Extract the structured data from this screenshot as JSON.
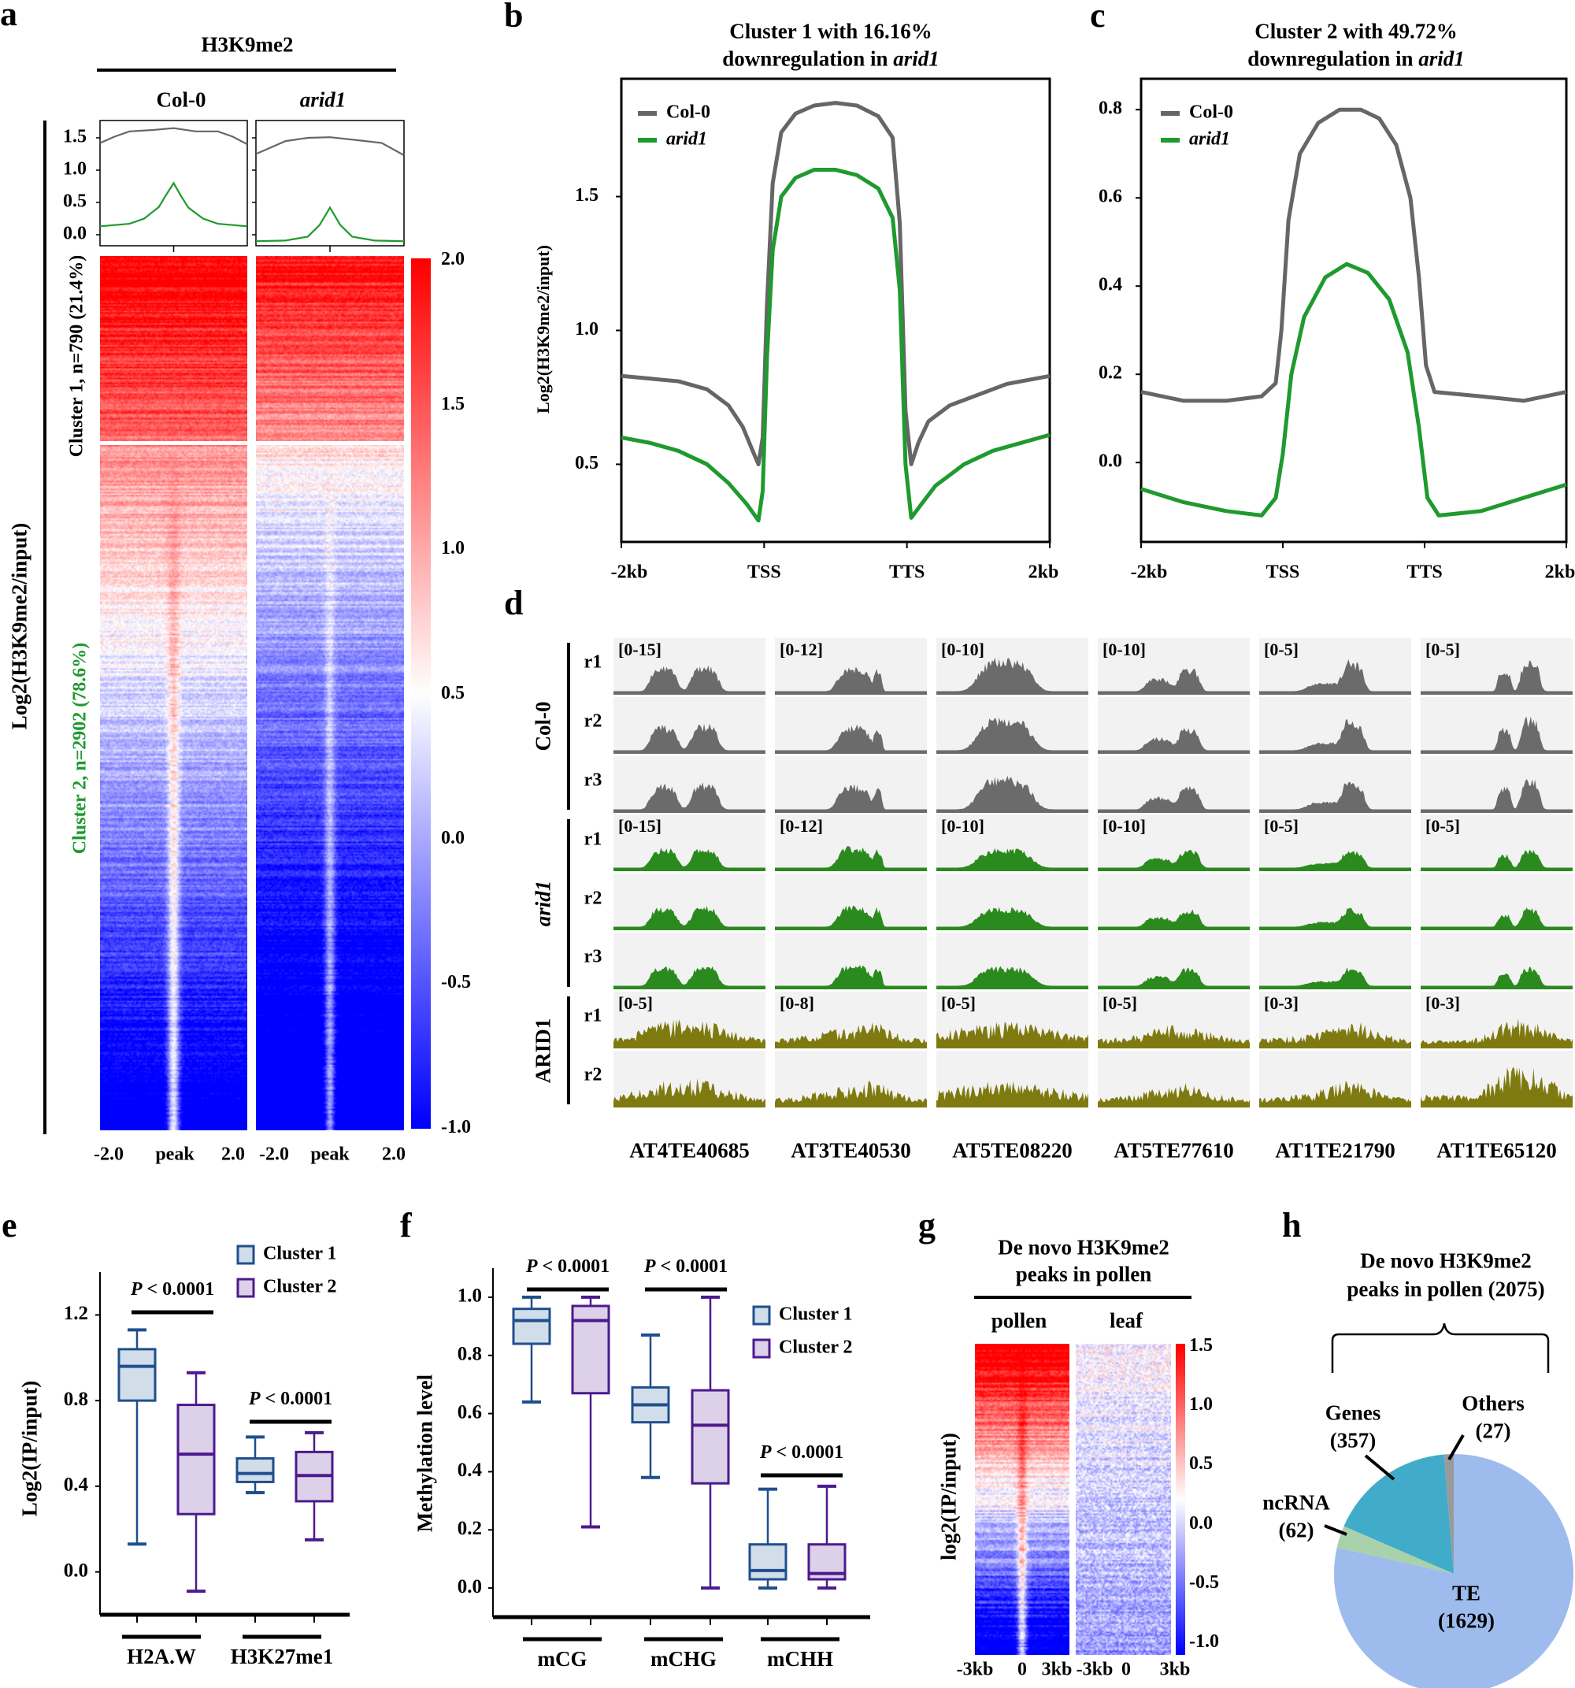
{
  "panel_labels": {
    "a": "a",
    "b": "b",
    "c": "c",
    "d": "d",
    "e": "e",
    "f": "f",
    "g": "g",
    "h": "h"
  },
  "chart_data": [
    {
      "type": "heatmap",
      "title": "H3K9me2",
      "columns": [
        "Col-0",
        "arid1"
      ],
      "ylabel": "Log2(H3K9me2/input)",
      "clusters": [
        {
          "label": "Cluster 1, n=790 (21.4%)",
          "n": 790,
          "percent": 21.4,
          "color": "#000000"
        },
        {
          "label": "Cluster 2, n=2902 (78.6%)",
          "n": 2902,
          "percent": 78.6,
          "color": "#1e9a2e"
        }
      ],
      "xticks": [
        "-2.0",
        "peak",
        "2.0"
      ],
      "colorbar": {
        "range": [
          -1.0,
          2.0
        ],
        "ticks": [
          "2.0",
          "1.5",
          "1.0",
          "0.5",
          "0.0",
          "-0.5",
          "-1.0"
        ],
        "low": "#0000ff",
        "mid": "#ffffff",
        "high": "#ff0000"
      },
      "profile": {
        "yticks": [
          "1.5",
          "1.0",
          "0.5",
          "0.0"
        ],
        "ylim": [
          -0.2,
          1.75
        ],
        "series": [
          {
            "panel": "Col-0",
            "cluster": 1,
            "color": "#666666",
            "points": [
              [
                0,
                1.42
              ],
              [
                0.1,
                1.52
              ],
              [
                0.2,
                1.6
              ],
              [
                0.35,
                1.62
              ],
              [
                0.5,
                1.65
              ],
              [
                0.65,
                1.6
              ],
              [
                0.8,
                1.6
              ],
              [
                0.9,
                1.52
              ],
              [
                1,
                1.4
              ]
            ]
          },
          {
            "panel": "Col-0",
            "cluster": 2,
            "color": "#1e9a2e",
            "points": [
              [
                0,
                0.13
              ],
              [
                0.2,
                0.17
              ],
              [
                0.3,
                0.25
              ],
              [
                0.4,
                0.43
              ],
              [
                0.45,
                0.62
              ],
              [
                0.5,
                0.8
              ],
              [
                0.55,
                0.6
              ],
              [
                0.6,
                0.42
              ],
              [
                0.7,
                0.25
              ],
              [
                0.8,
                0.17
              ],
              [
                1,
                0.13
              ]
            ]
          },
          {
            "panel": "arid1",
            "cluster": 1,
            "color": "#666666",
            "points": [
              [
                0,
                1.25
              ],
              [
                0.2,
                1.45
              ],
              [
                0.35,
                1.5
              ],
              [
                0.5,
                1.51
              ],
              [
                0.7,
                1.46
              ],
              [
                0.85,
                1.42
              ],
              [
                1,
                1.23
              ]
            ]
          },
          {
            "panel": "arid1",
            "cluster": 2,
            "color": "#1e9a2e",
            "points": [
              [
                0,
                -0.1
              ],
              [
                0.2,
                -0.09
              ],
              [
                0.35,
                -0.03
              ],
              [
                0.43,
                0.15
              ],
              [
                0.5,
                0.42
              ],
              [
                0.57,
                0.15
              ],
              [
                0.65,
                -0.03
              ],
              [
                0.8,
                -0.09
              ],
              [
                1,
                -0.1
              ]
            ]
          }
        ]
      }
    },
    {
      "type": "line",
      "title_line1": "Cluster 1 with 16.16%",
      "title_line2_pre": "downregulation in ",
      "title_line2_it": "arid1",
      "ylabel": "Log2(H3K9me2/input)",
      "ylim": [
        0.21,
        1.94
      ],
      "yticks": [
        1.5,
        1.0,
        0.5
      ],
      "ytick_labels": [
        "1.5",
        "1.0",
        "0.5"
      ],
      "xlim": [
        0,
        300
      ],
      "xticks": [
        0,
        100,
        200,
        300
      ],
      "xtick_labels": [
        "-2kb",
        "TSS",
        "TTS",
        "2kb"
      ],
      "series": [
        {
          "name": "Col-0",
          "color": "#666666",
          "points": [
            [
              0,
              0.83
            ],
            [
              20,
              0.82
            ],
            [
              40,
              0.81
            ],
            [
              60,
              0.78
            ],
            [
              75,
              0.72
            ],
            [
              85,
              0.64
            ],
            [
              92,
              0.55
            ],
            [
              96,
              0.5
            ],
            [
              99,
              0.6
            ],
            [
              102,
              1.1
            ],
            [
              106,
              1.55
            ],
            [
              112,
              1.74
            ],
            [
              122,
              1.81
            ],
            [
              135,
              1.84
            ],
            [
              150,
              1.85
            ],
            [
              165,
              1.84
            ],
            [
              180,
              1.8
            ],
            [
              190,
              1.72
            ],
            [
              195,
              1.4
            ],
            [
              199,
              0.7
            ],
            [
              203,
              0.5
            ],
            [
              208,
              0.58
            ],
            [
              215,
              0.66
            ],
            [
              230,
              0.72
            ],
            [
              250,
              0.76
            ],
            [
              270,
              0.8
            ],
            [
              300,
              0.83
            ]
          ]
        },
        {
          "name": "arid1",
          "color": "#1e9a2e",
          "points": [
            [
              0,
              0.6
            ],
            [
              20,
              0.58
            ],
            [
              40,
              0.55
            ],
            [
              60,
              0.5
            ],
            [
              75,
              0.43
            ],
            [
              88,
              0.35
            ],
            [
              96,
              0.29
            ],
            [
              99,
              0.4
            ],
            [
              102,
              0.9
            ],
            [
              106,
              1.3
            ],
            [
              112,
              1.5
            ],
            [
              122,
              1.57
            ],
            [
              135,
              1.6
            ],
            [
              150,
              1.6
            ],
            [
              165,
              1.58
            ],
            [
              180,
              1.53
            ],
            [
              190,
              1.42
            ],
            [
              195,
              1.15
            ],
            [
              199,
              0.5
            ],
            [
              203,
              0.3
            ],
            [
              210,
              0.35
            ],
            [
              220,
              0.42
            ],
            [
              240,
              0.5
            ],
            [
              260,
              0.55
            ],
            [
              300,
              0.61
            ]
          ]
        }
      ],
      "legend": "top-left"
    },
    {
      "type": "line",
      "title_line1": "Cluster 2 with 49.72%",
      "title_line2_pre": "downregulation in ",
      "title_line2_it": "arid1",
      "ylim": [
        -0.18,
        0.87
      ],
      "yticks": [
        0.8,
        0.6,
        0.4,
        0.2,
        0.0
      ],
      "ytick_labels": [
        "0.8",
        "0.6",
        "0.4",
        "0.2",
        "0.0"
      ],
      "xlim": [
        0,
        300
      ],
      "xticks": [
        0,
        100,
        200,
        300
      ],
      "xtick_labels": [
        "-2kb",
        "TSS",
        "TTS",
        "2kb"
      ],
      "series": [
        {
          "name": "Col-0",
          "color": "#666666",
          "points": [
            [
              0,
              0.16
            ],
            [
              30,
              0.14
            ],
            [
              60,
              0.14
            ],
            [
              85,
              0.15
            ],
            [
              95,
              0.18
            ],
            [
              99,
              0.3
            ],
            [
              104,
              0.55
            ],
            [
              112,
              0.7
            ],
            [
              125,
              0.77
            ],
            [
              140,
              0.8
            ],
            [
              155,
              0.8
            ],
            [
              168,
              0.78
            ],
            [
              180,
              0.72
            ],
            [
              190,
              0.6
            ],
            [
              196,
              0.42
            ],
            [
              201,
              0.22
            ],
            [
              207,
              0.16
            ],
            [
              240,
              0.15
            ],
            [
              270,
              0.14
            ],
            [
              300,
              0.16
            ]
          ]
        },
        {
          "name": "arid1",
          "color": "#1e9a2e",
          "points": [
            [
              0,
              -0.06
            ],
            [
              30,
              -0.09
            ],
            [
              60,
              -0.11
            ],
            [
              85,
              -0.12
            ],
            [
              95,
              -0.08
            ],
            [
              100,
              0.02
            ],
            [
              106,
              0.2
            ],
            [
              115,
              0.33
            ],
            [
              130,
              0.42
            ],
            [
              145,
              0.45
            ],
            [
              160,
              0.43
            ],
            [
              175,
              0.37
            ],
            [
              188,
              0.25
            ],
            [
              196,
              0.08
            ],
            [
              202,
              -0.08
            ],
            [
              210,
              -0.12
            ],
            [
              240,
              -0.11
            ],
            [
              270,
              -0.08
            ],
            [
              300,
              -0.05
            ]
          ]
        }
      ],
      "legend": "top-left"
    },
    {
      "type": "area",
      "genes": [
        "AT4TE40685",
        "AT3TE40530",
        "AT5TE08220",
        "AT5TE77610",
        "AT1TE21790",
        "AT1TE65120"
      ],
      "groups": [
        {
          "label": "Col-0",
          "italic": false,
          "color": "#6b6b6b",
          "rows": [
            "r1",
            "r2",
            "r3"
          ],
          "ranges": [
            "[0-15]",
            "[0-12]",
            "[0-10]",
            "[0-10]",
            "[0-5]",
            "[0-5]"
          ]
        },
        {
          "label": "arid1",
          "italic": true,
          "color": "#2b8a1e",
          "rows": [
            "r1",
            "r2",
            "r3"
          ],
          "ranges": [
            "[0-15]",
            "[0-12]",
            "[0-10]",
            "[0-10]",
            "[0-5]",
            "[0-5]"
          ]
        },
        {
          "label": "ARID1",
          "italic": false,
          "color": "#7f7a10",
          "rows": [
            "r1",
            "r2"
          ],
          "ranges": [
            "[0-5]",
            "[0-8]",
            "[0-5]",
            "[0-5]",
            "[0-3]",
            "[0-3]"
          ]
        }
      ]
    },
    {
      "type": "box",
      "ylabel": "Log2(IP/input)",
      "ylim": [
        -0.2,
        1.4
      ],
      "yticks": [
        1.2,
        0.8,
        0.4,
        0.0
      ],
      "ytick_labels": [
        "1.2",
        "0.8",
        "0.4",
        "0.0"
      ],
      "categories": [
        "H2A.W",
        "H3K27me1"
      ],
      "legend": [
        "Cluster 1",
        "Cluster 2"
      ],
      "pvalue_prefix": "P",
      "pvalue_text": " < 0.0001",
      "boxes": [
        {
          "category": "H2A.W",
          "cluster": 1,
          "min": 0.13,
          "q1": 0.8,
          "median": 0.96,
          "q3": 1.04,
          "max": 1.13
        },
        {
          "category": "H2A.W",
          "cluster": 2,
          "min": -0.09,
          "q1": 0.27,
          "median": 0.55,
          "q3": 0.78,
          "max": 0.93
        },
        {
          "category": "H3K27me1",
          "cluster": 1,
          "min": 0.37,
          "q1": 0.42,
          "median": 0.46,
          "q3": 0.53,
          "max": 0.63
        },
        {
          "category": "H3K27me1",
          "cluster": 2,
          "min": 0.15,
          "q1": 0.33,
          "median": 0.45,
          "q3": 0.56,
          "max": 0.65
        }
      ]
    },
    {
      "type": "box",
      "ylabel": "Methylation level",
      "ylim": [
        -0.1,
        1.1
      ],
      "yticks": [
        1.0,
        0.8,
        0.6,
        0.4,
        0.2,
        0.0
      ],
      "ytick_labels": [
        "1.0",
        "0.8",
        "0.6",
        "0.4",
        "0.2",
        "0.0"
      ],
      "categories": [
        "mCG",
        "mCHG",
        "mCHH"
      ],
      "legend": [
        "Cluster 1",
        "Cluster 2"
      ],
      "pvalue_prefix": "P",
      "pvalue_text": " < 0.0001",
      "boxes": [
        {
          "category": "mCG",
          "cluster": 1,
          "min": 0.64,
          "q1": 0.84,
          "median": 0.92,
          "q3": 0.96,
          "max": 1.0
        },
        {
          "category": "mCG",
          "cluster": 2,
          "min": 0.21,
          "q1": 0.67,
          "median": 0.92,
          "q3": 0.97,
          "max": 1.0
        },
        {
          "category": "mCHG",
          "cluster": 1,
          "min": 0.38,
          "q1": 0.57,
          "median": 0.63,
          "q3": 0.69,
          "max": 0.87
        },
        {
          "category": "mCHG",
          "cluster": 2,
          "min": 0.0,
          "q1": 0.36,
          "median": 0.56,
          "q3": 0.68,
          "max": 1.0
        },
        {
          "category": "mCHH",
          "cluster": 1,
          "min": 0.0,
          "q1": 0.03,
          "median": 0.06,
          "q3": 0.15,
          "max": 0.34
        },
        {
          "category": "mCHH",
          "cluster": 2,
          "min": 0.0,
          "q1": 0.03,
          "median": 0.05,
          "q3": 0.15,
          "max": 0.35
        }
      ]
    },
    {
      "type": "heatmap",
      "title_line1": "De novo H3K9me2",
      "title_line2": "peaks in pollen",
      "columns": [
        "pollen",
        "leaf"
      ],
      "ylabel": "log2(IP/input)",
      "xticks_left": [
        "-3kb",
        "0",
        "3kb"
      ],
      "xticks_right": [
        "-3kb",
        "0",
        "3kb"
      ],
      "colorbar": {
        "range": [
          -1.0,
          1.5
        ],
        "ticks": [
          "1.5",
          "1.0",
          "0.5",
          "0.0",
          "-0.5",
          "-1.0"
        ]
      }
    },
    {
      "type": "pie",
      "title_line1": "De novo H3K9me2",
      "title_line2": "peaks in pollen (2075)",
      "total": 2075,
      "slices": [
        {
          "name": "Others",
          "value": 27,
          "count_label": "(27)",
          "color": "#9a9a9a"
        },
        {
          "name": "Genes",
          "value": 357,
          "count_label": "(357)",
          "color": "#41acc9"
        },
        {
          "name": "ncRNA",
          "value": 62,
          "count_label": "(62)",
          "color": "#a9d1ab"
        },
        {
          "name": "TE",
          "value": 1629,
          "count_label": "(1629)",
          "color": "#9dbbec"
        }
      ]
    }
  ]
}
